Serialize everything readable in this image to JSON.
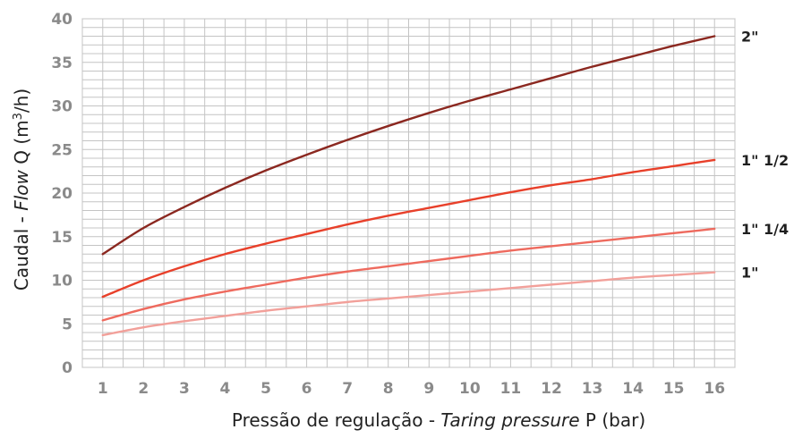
{
  "chart_data": {
    "type": "line",
    "x": [
      1,
      2,
      3,
      4,
      5,
      6,
      7,
      8,
      9,
      10,
      11,
      12,
      13,
      14,
      15,
      16
    ],
    "xlim": [
      0.5,
      16.5
    ],
    "ylim": [
      0,
      40
    ],
    "xticks": [
      1,
      2,
      3,
      4,
      5,
      6,
      7,
      8,
      9,
      10,
      11,
      12,
      13,
      14,
      15,
      16
    ],
    "yticks": [
      0,
      5,
      10,
      15,
      20,
      25,
      30,
      35,
      40
    ],
    "grid": true,
    "legend": "labels at line ends (right)",
    "xlabel": {
      "part1": "Pressão de regulação - ",
      "part2": "Taring pressure",
      "part3": "  P (bar)"
    },
    "ylabel": {
      "part1": "Caudal - ",
      "part2": "Flow",
      "part3": "  Q (m",
      "sup": "3",
      "part4": "/h)"
    },
    "series": [
      {
        "name": "2\"",
        "color": "#8b2820",
        "values": [
          13.0,
          16.0,
          18.4,
          20.6,
          22.6,
          24.4,
          26.1,
          27.7,
          29.2,
          30.6,
          31.9,
          33.2,
          34.5,
          35.7,
          36.9,
          38.0
        ]
      },
      {
        "name": "1\" 1/2",
        "color": "#e8402a",
        "values": [
          8.1,
          10.0,
          11.6,
          13.0,
          14.2,
          15.3,
          16.4,
          17.4,
          18.3,
          19.2,
          20.1,
          20.9,
          21.6,
          22.4,
          23.1,
          23.8
        ]
      },
      {
        "name": "1\" 1/4",
        "color": "#ee6a5e",
        "values": [
          5.4,
          6.7,
          7.8,
          8.7,
          9.5,
          10.3,
          11.0,
          11.6,
          12.2,
          12.8,
          13.4,
          13.9,
          14.4,
          14.9,
          15.4,
          15.9
        ]
      },
      {
        "name": "1\"",
        "color": "#f2a09a",
        "values": [
          3.7,
          4.6,
          5.3,
          5.9,
          6.5,
          7.0,
          7.5,
          7.9,
          8.3,
          8.7,
          9.1,
          9.5,
          9.9,
          10.3,
          10.6,
          10.9
        ]
      }
    ]
  }
}
